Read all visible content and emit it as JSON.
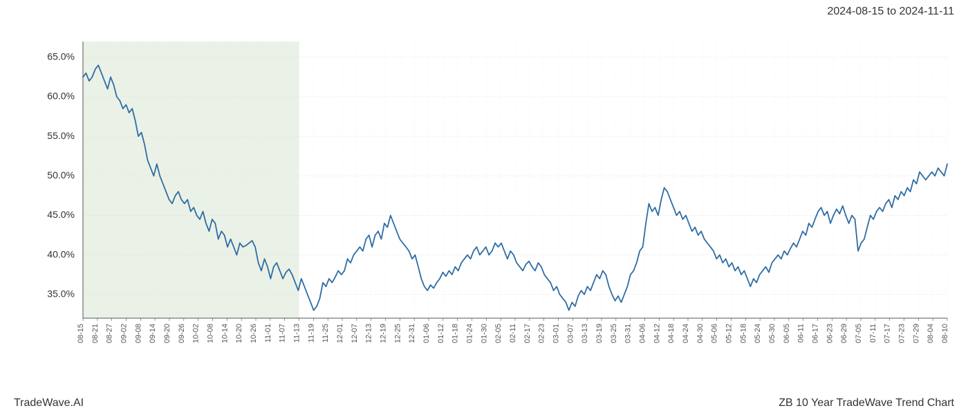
{
  "date_range": "2024-08-15 to 2024-11-11",
  "footer_left": "TradeWave.AI",
  "footer_right": "ZB 10 Year TradeWave Trend Chart",
  "chart": {
    "type": "line",
    "background_color": "#ffffff",
    "line_color": "#2e6ca4",
    "line_width": 1.8,
    "grid_color_major": "#dcdcdc",
    "grid_color_minor": "#ececec",
    "grid_dash": "1,2",
    "axis_color": "#555555",
    "highlight_fill": "#dfe9d8",
    "highlight_opacity": 0.65,
    "highlight_range": [
      "08-15",
      "11-13"
    ],
    "ylim": [
      32,
      67
    ],
    "ytick_step": 5,
    "yticks": [
      35.0,
      40.0,
      45.0,
      50.0,
      55.0,
      60.0,
      65.0
    ],
    "ytick_suffix": "%",
    "label_fontsize": 14,
    "xtick_fontsize": 11,
    "xtick_rotation": -90,
    "x_labels": [
      "08-15",
      "08-21",
      "08-27",
      "09-02",
      "09-08",
      "09-14",
      "09-20",
      "09-26",
      "10-02",
      "10-08",
      "10-14",
      "10-20",
      "10-26",
      "11-01",
      "11-07",
      "11-13",
      "11-19",
      "11-25",
      "12-01",
      "12-07",
      "12-13",
      "12-19",
      "12-25",
      "12-31",
      "01-06",
      "01-12",
      "01-18",
      "01-24",
      "01-30",
      "02-05",
      "02-11",
      "02-17",
      "02-23",
      "03-01",
      "03-07",
      "03-13",
      "03-19",
      "03-25",
      "03-31",
      "04-06",
      "04-12",
      "04-18",
      "04-24",
      "04-30",
      "05-06",
      "05-12",
      "05-18",
      "05-24",
      "05-30",
      "06-05",
      "06-11",
      "06-17",
      "06-23",
      "06-29",
      "07-05",
      "07-11",
      "07-17",
      "07-23",
      "07-29",
      "08-04",
      "08-10"
    ],
    "series": [
      62.5,
      63.0,
      62.0,
      62.5,
      63.5,
      64.0,
      63.0,
      62.0,
      61.0,
      62.5,
      61.5,
      60.0,
      59.5,
      58.5,
      59.0,
      58.0,
      58.5,
      57.0,
      55.0,
      55.5,
      54.0,
      52.0,
      51.0,
      50.0,
      51.5,
      50.0,
      49.0,
      48.0,
      47.0,
      46.5,
      47.5,
      48.0,
      47.0,
      46.5,
      47.0,
      45.5,
      46.0,
      45.0,
      44.5,
      45.5,
      44.0,
      43.0,
      44.5,
      44.0,
      42.0,
      43.0,
      42.5,
      41.0,
      42.0,
      41.0,
      40.0,
      41.5,
      41.0,
      41.2,
      41.5,
      41.8,
      41.0,
      39.0,
      38.0,
      39.5,
      38.5,
      37.0,
      38.5,
      39.0,
      38.0,
      37.0,
      37.8,
      38.2,
      37.5,
      36.5,
      35.5,
      37.0,
      36.0,
      35.0,
      34.0,
      33.0,
      33.5,
      34.5,
      36.5,
      36.0,
      37.0,
      36.5,
      37.2,
      38.0,
      37.5,
      38.0,
      39.5,
      39.0,
      40.0,
      40.5,
      41.0,
      40.5,
      42.0,
      42.5,
      41.0,
      42.5,
      43.0,
      42.0,
      44.0,
      43.5,
      45.0,
      44.0,
      43.0,
      42.0,
      41.5,
      41.0,
      40.5,
      39.5,
      40.0,
      38.5,
      37.0,
      36.0,
      35.5,
      36.2,
      35.8,
      36.5,
      37.0,
      37.8,
      37.3,
      38.0,
      37.5,
      38.5,
      38.0,
      39.0,
      39.5,
      40.0,
      39.5,
      40.5,
      41.0,
      40.0,
      40.5,
      41.0,
      40.0,
      40.5,
      41.5,
      41.0,
      41.5,
      40.5,
      39.5,
      40.5,
      40.0,
      39.0,
      38.5,
      38.0,
      38.8,
      39.2,
      38.5,
      38.0,
      39.0,
      38.5,
      37.5,
      37.0,
      36.5,
      35.5,
      36.0,
      35.0,
      34.5,
      34.0,
      33.0,
      34.0,
      33.5,
      34.8,
      35.5,
      35.0,
      36.0,
      35.5,
      36.5,
      37.5,
      37.0,
      38.0,
      37.5,
      36.0,
      35.0,
      34.2,
      34.8,
      34.0,
      35.0,
      36.0,
      37.5,
      38.0,
      39.0,
      40.5,
      41.0,
      44.0,
      46.5,
      45.5,
      46.0,
      45.0,
      47.0,
      48.5,
      48.0,
      47.0,
      46.0,
      45.0,
      45.5,
      44.5,
      45.0,
      44.0,
      43.0,
      43.5,
      42.5,
      43.0,
      42.0,
      41.5,
      41.0,
      40.5,
      39.5,
      40.0,
      39.0,
      39.5,
      38.5,
      39.0,
      38.0,
      38.5,
      37.5,
      38.0,
      37.0,
      36.0,
      37.0,
      36.5,
      37.5,
      38.0,
      38.5,
      37.8,
      39.0,
      39.5,
      40.0,
      39.5,
      40.5,
      40.0,
      40.8,
      41.5,
      41.0,
      42.0,
      43.0,
      42.5,
      44.0,
      43.5,
      44.5,
      45.5,
      46.0,
      45.0,
      45.5,
      44.0,
      45.0,
      45.8,
      45.2,
      46.2,
      45.0,
      44.0,
      45.0,
      44.5,
      40.5,
      41.5,
      42.0,
      43.5,
      45.0,
      44.5,
      45.5,
      46.0,
      45.5,
      46.5,
      47.0,
      46.0,
      47.5,
      47.0,
      48.0,
      47.5,
      48.5,
      48.0,
      49.5,
      49.0,
      50.5,
      50.0,
      49.5,
      50.0,
      50.5,
      50.0,
      51.0,
      50.5,
      50.0,
      51.5
    ]
  }
}
